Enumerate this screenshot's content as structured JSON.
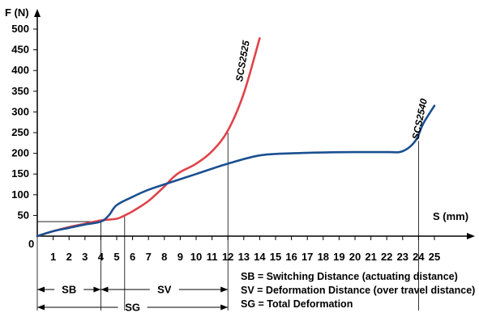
{
  "chart_data": {
    "type": "line",
    "ylabel": "F (N)",
    "xlabel": "S (mm)",
    "xlim": [
      0,
      25
    ],
    "ylim": [
      0,
      500
    ],
    "x_ticks": [
      1,
      2,
      3,
      4,
      5,
      6,
      7,
      8,
      9,
      10,
      11,
      12,
      13,
      14,
      15,
      16,
      17,
      18,
      19,
      20,
      21,
      22,
      23,
      24,
      25
    ],
    "y_ticks": [
      50,
      100,
      150,
      200,
      250,
      300,
      350,
      400,
      450,
      500
    ],
    "origin_label": "0",
    "series": [
      {
        "name": "SCS2525",
        "color": "#e0424a",
        "x": [
          0,
          1,
          2,
          3,
          4,
          5,
          5.5,
          6,
          7,
          8,
          8.5,
          9,
          10,
          11,
          12,
          13,
          14
        ],
        "y": [
          0,
          12,
          22,
          30,
          38,
          42,
          50,
          60,
          85,
          120,
          140,
          155,
          175,
          205,
          255,
          345,
          478
        ]
      },
      {
        "name": "SCS2540",
        "color": "#1a5090",
        "x": [
          0,
          1,
          2,
          3,
          4,
          4.5,
          5,
          6,
          7,
          8,
          10,
          12,
          14,
          16,
          18,
          20,
          22,
          23,
          23.8,
          24.3,
          25
        ],
        "y": [
          0,
          12,
          20,
          28,
          35,
          50,
          75,
          95,
          112,
          125,
          150,
          175,
          195,
          200,
          202,
          203,
          203,
          205,
          230,
          272,
          315
        ]
      }
    ],
    "reference_lines": [
      {
        "type": "horizontal",
        "y": 35,
        "x_from": 0,
        "x_to": 4
      },
      {
        "type": "vertical",
        "x": 4,
        "y_to": 38
      },
      {
        "type": "vertical",
        "x": 5.5,
        "y_to": 50
      },
      {
        "type": "vertical",
        "x": 12,
        "y_to": 250
      },
      {
        "type": "vertical",
        "x": 24,
        "y_to": 230
      }
    ],
    "dimension_arrows": [
      {
        "label": "SB",
        "x_from": 0,
        "x_to": 4
      },
      {
        "label": "SV",
        "x_from": 4,
        "x_to": 12
      },
      {
        "label": "SG",
        "x_from": 0,
        "x_to": 12
      }
    ],
    "legend": [
      "SB = Switching Distance (actuating distance)",
      "SV = Deformation Distance (over travel distance)",
      "SG = Total Deformation"
    ]
  }
}
